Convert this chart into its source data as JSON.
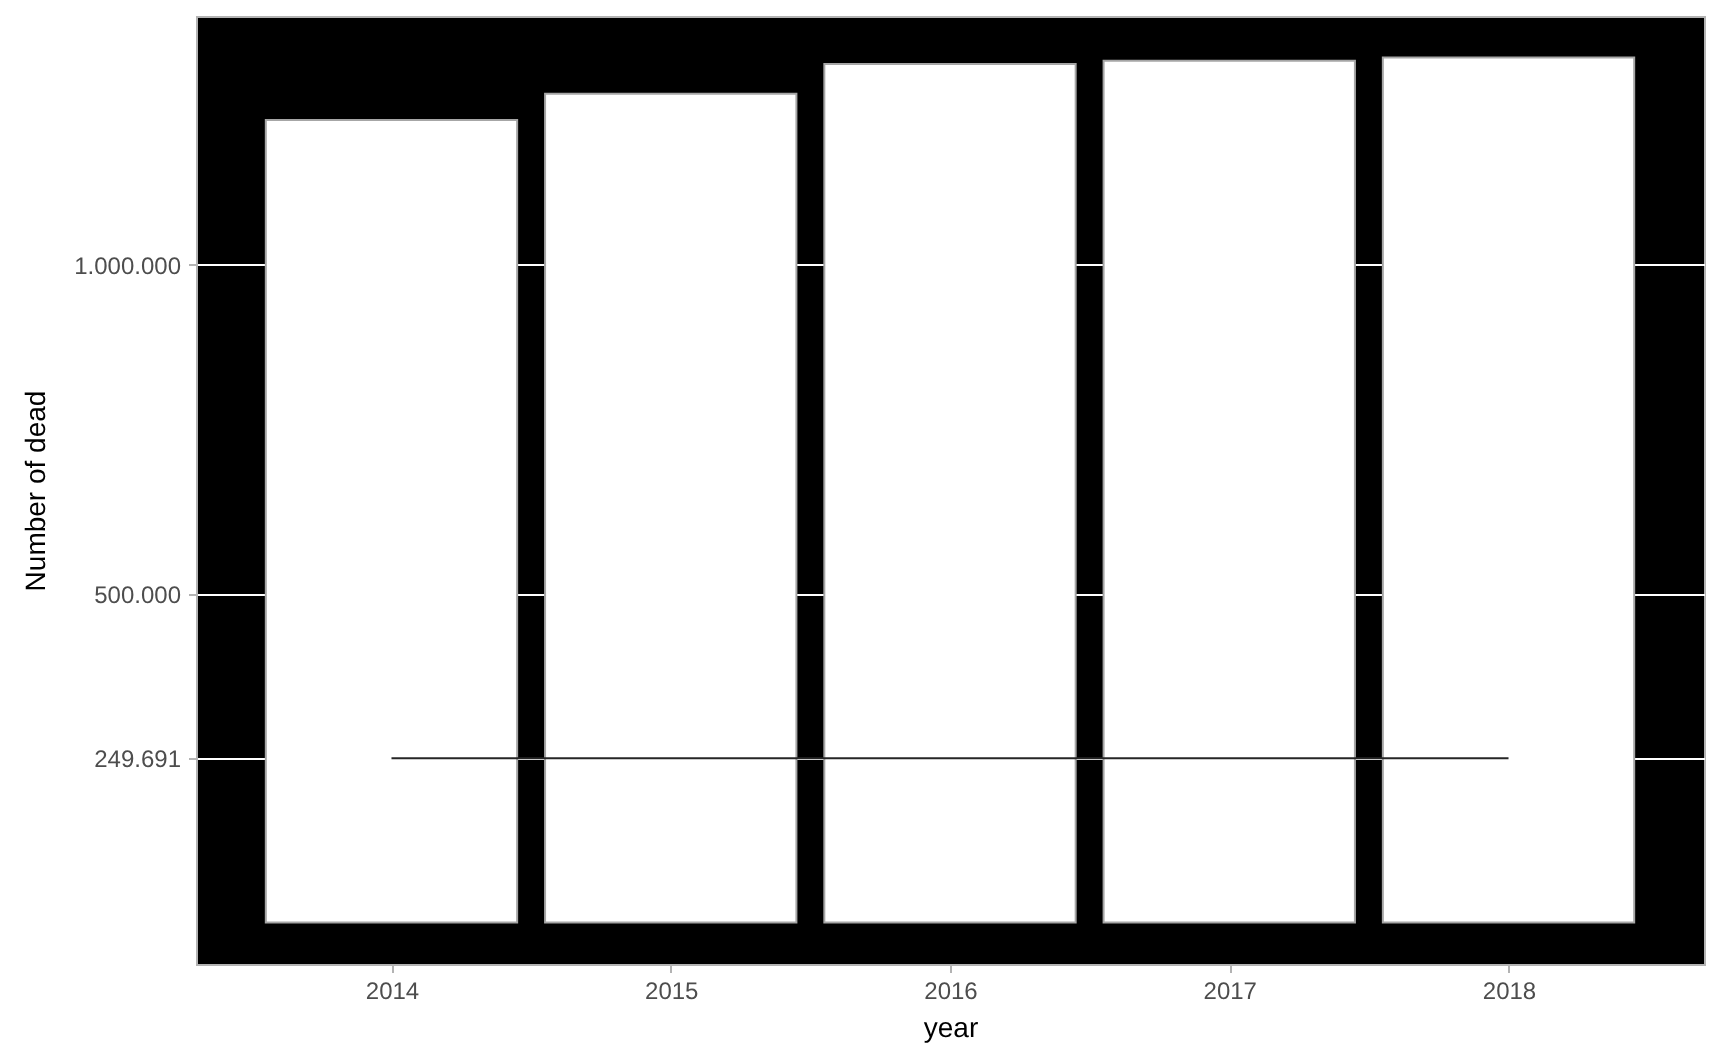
{
  "chart_data": {
    "type": "bar",
    "xlabel": "year",
    "ylabel": "Number of dead",
    "x": [
      2014,
      2015,
      2016,
      2017,
      2018
    ],
    "series": [
      {
        "color": "#ffffff",
        "values": [
          1220000,
          1260000,
          1305000,
          1310000,
          1315000
        ]
      },
      {
        "type": "line",
        "color": "#262626",
        "values": [
          249691,
          249691,
          249691,
          249691,
          249691
        ]
      }
    ],
    "xlim": [
      2013.3,
      2018.7
    ],
    "xticks": [
      2014,
      2015,
      2016,
      2017,
      2018
    ],
    "ylim": [
      -63000,
      1378000
    ],
    "yticks": [
      {
        "value": 249691,
        "label": "249.691"
      },
      {
        "value": 500000,
        "label": "500.000"
      },
      {
        "value": 1000000,
        "label": "1.000.000"
      }
    ],
    "grid": "y"
  }
}
